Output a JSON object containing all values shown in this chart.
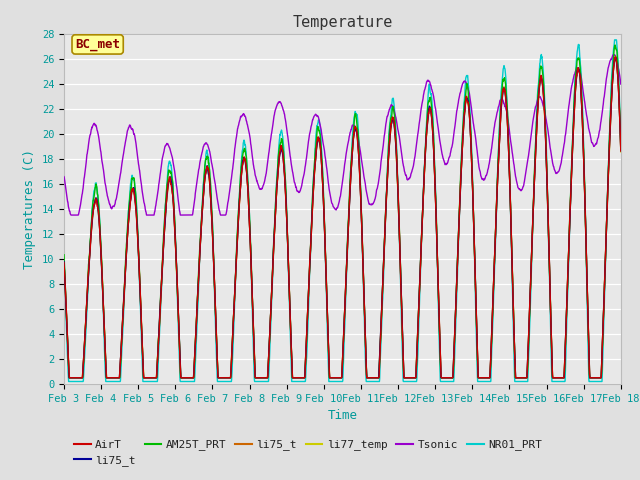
{
  "title": "Temperature",
  "ylabel": "Temperatures (C)",
  "xlabel": "Time",
  "ylim": [
    0,
    28
  ],
  "xlim": [
    0,
    15
  ],
  "x_tick_labels": [
    "Feb 3",
    "Feb 4",
    "Feb 5",
    "Feb 6",
    "Feb 7",
    "Feb 8",
    "Feb 9",
    "Feb 10",
    "Feb 11",
    "Feb 12",
    "Feb 13",
    "Feb 14",
    "Feb 15",
    "Feb 16",
    "Feb 17",
    "Feb 18"
  ],
  "legend_entries": [
    "AirT",
    "li75_t",
    "AM25T_PRT",
    "li75_t",
    "li77_temp",
    "Tsonic",
    "NR01_PRT"
  ],
  "legend_colors": [
    "#cc0000",
    "#000099",
    "#00bb00",
    "#cc6600",
    "#cccc00",
    "#9900cc",
    "#00cccc"
  ],
  "annotation_text": "BC_met",
  "bg_color": "#e0e0e0",
  "plot_bg_color": "#e8e8e8",
  "grid_color": "#ffffff",
  "title_fontsize": 11,
  "axis_fontsize": 9,
  "tick_fontsize": 7.5
}
